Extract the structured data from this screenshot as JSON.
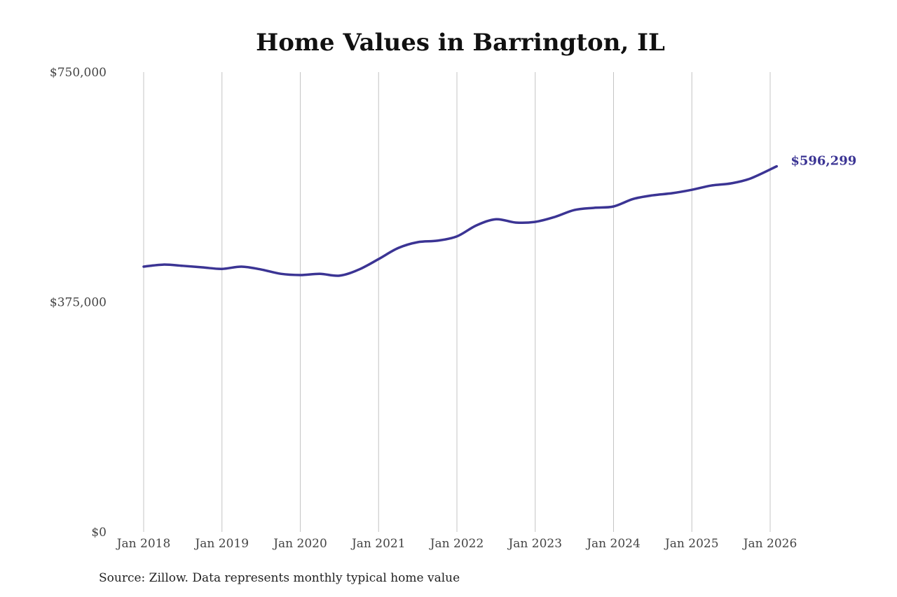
{
  "chart_data": {
    "type": "line",
    "title": "Home Values in Barrington, IL",
    "xlabel": "",
    "ylabel": "",
    "ylim": [
      0,
      750000
    ],
    "y_ticks": [
      0,
      375000,
      750000
    ],
    "y_tick_labels": [
      "$0",
      "$375,000",
      "$750,000"
    ],
    "x_ticks": [
      "2018-01",
      "2019-01",
      "2020-01",
      "2021-01",
      "2022-01",
      "2023-01",
      "2024-01",
      "2025-01",
      "2026-01"
    ],
    "x_tick_labels": [
      "Jan 2018",
      "Jan 2019",
      "Jan 2020",
      "Jan 2021",
      "Jan 2022",
      "Jan 2023",
      "Jan 2024",
      "Jan 2025",
      "Jan 2026"
    ],
    "grid": "vertical",
    "line_color": "#3b3494",
    "series": [
      {
        "name": "Typical home value",
        "x": [
          "2018-01",
          "2018-04",
          "2018-07",
          "2018-10",
          "2019-01",
          "2019-04",
          "2019-07",
          "2019-10",
          "2020-01",
          "2020-04",
          "2020-07",
          "2020-10",
          "2021-01",
          "2021-04",
          "2021-07",
          "2021-10",
          "2022-01",
          "2022-04",
          "2022-07",
          "2022-10",
          "2023-01",
          "2023-04",
          "2023-07",
          "2023-10",
          "2024-01",
          "2024-04",
          "2024-07",
          "2024-10",
          "2025-01",
          "2025-04",
          "2025-07",
          "2025-10",
          "2026-02"
        ],
        "values": [
          432700,
          436000,
          434000,
          431500,
          429000,
          432700,
          428000,
          421000,
          419000,
          421000,
          418000,
          428000,
          445000,
          463000,
          472600,
          475000,
          482000,
          500000,
          510000,
          504600,
          505700,
          513700,
          525000,
          528600,
          530800,
          543000,
          549000,
          552500,
          558000,
          565000,
          568500,
          576500,
          596299
        ]
      }
    ],
    "end_label": "$596,299",
    "source": "Source: Zillow. Data represents monthly typical home value"
  }
}
